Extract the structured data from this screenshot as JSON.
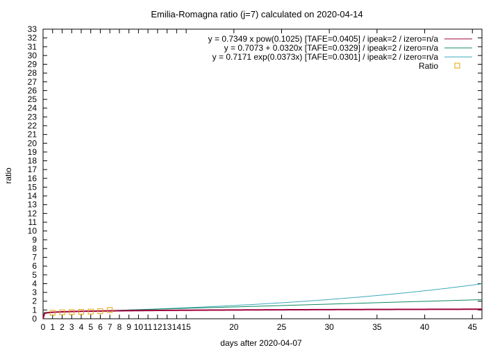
{
  "chart_data": {
    "type": "line",
    "title": "Emilia-Romagna ratio (j=7) calculated on 2020-04-14",
    "xlabel": "days after 2020-04-07",
    "ylabel": "ratio",
    "xlim": [
      0,
      46
    ],
    "ylim": [
      0,
      33
    ],
    "x_ticks": [
      0,
      1,
      2,
      3,
      4,
      5,
      6,
      7,
      8,
      9,
      10,
      11,
      12,
      13,
      14,
      15,
      20,
      25,
      30,
      35,
      40,
      45
    ],
    "y_ticks": [
      0,
      1,
      2,
      3,
      4,
      5,
      6,
      7,
      8,
      9,
      10,
      11,
      12,
      13,
      14,
      15,
      16,
      17,
      18,
      19,
      20,
      21,
      22,
      23,
      24,
      25,
      26,
      27,
      28,
      29,
      30,
      31,
      32,
      33
    ],
    "legend_position": "top-right",
    "grid": false,
    "series": [
      {
        "name": "y = 0.7349 x pow(0.1025)  [TAFE=0.0405] / ipeak=2 / izero=n/a",
        "kind": "power",
        "a": 0.7349,
        "b": 0.1025,
        "color": "#a0003c"
      },
      {
        "name": "y = 0.7073 + 0.0320x  [TAFE=0.0329] / ipeak=2 / izero=n/a",
        "kind": "linear",
        "a": 0.7073,
        "b": 0.032,
        "color": "#0d8a5e"
      },
      {
        "name": "y = 0.7171 exp(0.0373x)  [TAFE=0.0301] / ipeak=2 / izero=n/a",
        "kind": "exponential",
        "a": 0.7171,
        "b": 0.0373,
        "color": "#3aa9b9"
      },
      {
        "name": "Ratio",
        "kind": "points",
        "color": "#e8a000",
        "x": [
          1,
          2,
          3,
          4,
          5,
          6,
          7
        ],
        "y": [
          0.68,
          0.74,
          0.76,
          0.79,
          0.82,
          0.86,
          0.99
        ]
      }
    ]
  }
}
